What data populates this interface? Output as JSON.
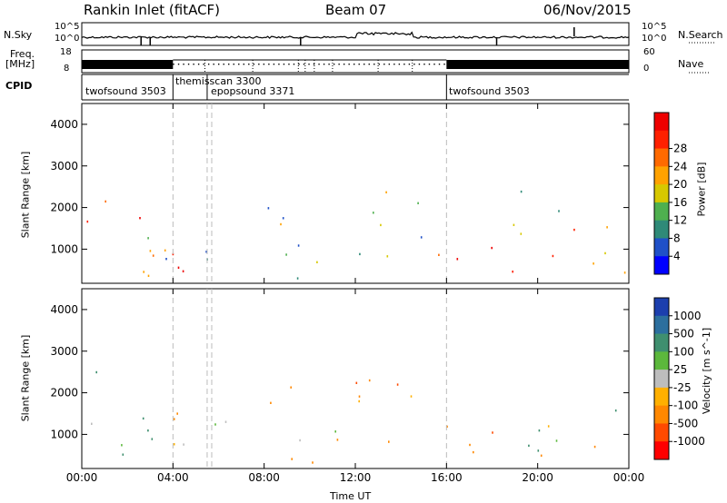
{
  "header": {
    "station": "Rankin Inlet (fitACF)",
    "beam": "Beam 07",
    "date": "06/Nov/2015"
  },
  "noise_panel": {
    "left_label": "N.Sky",
    "right_label": "N.Search",
    "left_ticks": [
      "10^5",
      "10^0"
    ],
    "right_ticks": [
      "10^5",
      "10^0"
    ]
  },
  "freq_panel": {
    "left_label_line1": "Freq.",
    "left_label_line2": "[MHz]",
    "right_label": "Nave",
    "left_ticks": [
      "18",
      "8"
    ],
    "right_ticks": [
      "60",
      "0"
    ]
  },
  "cpid_panel": {
    "label": "CPID",
    "programs": [
      {
        "name": "twofsound",
        "id": "3503",
        "start": 0.0
      },
      {
        "name": "themisscan",
        "id": "3300",
        "start": 4.0
      },
      {
        "name": "epopsound",
        "id": "3371",
        "start": 5.5
      },
      {
        "name": "twofsound",
        "id": "3503",
        "start": 16.0
      }
    ]
  },
  "x_axis": {
    "label": "Time UT",
    "ticks": [
      "00:00",
      "04:00",
      "08:00",
      "12:00",
      "16:00",
      "20:00",
      "00:00"
    ],
    "range_hours": [
      0,
      24
    ]
  },
  "chart_data": [
    {
      "type": "heatmap",
      "name": "Power",
      "ylabel": "Slant Range [km]",
      "ylim": [
        180,
        4500
      ],
      "yticks": [
        1000,
        2000,
        3000,
        4000
      ],
      "colorbar": {
        "label": "Power [dB]",
        "ticks": [
          "4",
          "8",
          "12",
          "16",
          "20",
          "24",
          "28"
        ],
        "range": [
          0,
          30
        ],
        "colors": [
          "#0000ff",
          "#1f50c8",
          "#2f8a78",
          "#4fb04f",
          "#d7c800",
          "#ffa200",
          "#ff6a00",
          "#ff2000",
          "#ee0000"
        ]
      },
      "echo_regions": [
        {
          "t0": 0.0,
          "t1": 4.0,
          "r0": 300,
          "r1": 1800,
          "value": 26
        },
        {
          "t0": 0.0,
          "t1": 1.2,
          "r0": 1800,
          "r1": 2700,
          "value": 14
        },
        {
          "t0": 2.5,
          "t1": 7.0,
          "r0": 700,
          "r1": 1700,
          "value": 12
        },
        {
          "t0": 4.0,
          "t1": 8.0,
          "r0": 300,
          "r1": 700,
          "value": 24
        },
        {
          "t0": 8.0,
          "t1": 11.5,
          "r0": 300,
          "r1": 2200,
          "value": 14
        },
        {
          "t0": 11.5,
          "t1": 15.0,
          "r0": 800,
          "r1": 2500,
          "value": 13
        },
        {
          "t0": 14.0,
          "t1": 18.5,
          "r0": 600,
          "r1": 1200,
          "value": 28
        },
        {
          "t0": 18.5,
          "t1": 24.0,
          "r0": 300,
          "r1": 1600,
          "value": 18
        },
        {
          "t0": 18.5,
          "t1": 21.0,
          "r0": 1600,
          "r1": 2500,
          "value": 12
        }
      ]
    },
    {
      "type": "heatmap",
      "name": "Velocity",
      "ylabel": "Slant Range [km]",
      "ylim": [
        180,
        4500
      ],
      "yticks": [
        1000,
        2000,
        3000,
        4000
      ],
      "colorbar": {
        "label": "Velocity [m s^-1]",
        "ticks": [
          "1000",
          "500",
          "100",
          "25",
          "-25",
          "-100",
          "-500",
          "-1000"
        ],
        "range": [
          -1000,
          1000
        ],
        "colors": [
          "#1c3fae",
          "#2c6f9e",
          "#3f8f6f",
          "#5cb83c",
          "#bdbdbd",
          "#ffb000",
          "#ff8800",
          "#ff4a00",
          "#ff0000"
        ]
      },
      "echo_regions": [
        {
          "t0": 0.0,
          "t1": 4.0,
          "r0": 500,
          "r1": 1800,
          "value": 150
        },
        {
          "t0": 0.0,
          "t1": 1.2,
          "r0": 1800,
          "r1": 2700,
          "value": 80
        },
        {
          "t0": 4.0,
          "t1": 8.0,
          "r0": 300,
          "r1": 1600,
          "value": 0
        },
        {
          "t0": 8.0,
          "t1": 11.5,
          "r0": 300,
          "r1": 2200,
          "value": -200
        },
        {
          "t0": 11.5,
          "t1": 15.0,
          "r0": 800,
          "r1": 2600,
          "value": -300
        },
        {
          "t0": 15.0,
          "t1": 18.5,
          "r0": 400,
          "r1": 1300,
          "value": -400
        },
        {
          "t0": 18.5,
          "t1": 24.0,
          "r0": 300,
          "r1": 1600,
          "value": 100
        }
      ]
    }
  ]
}
